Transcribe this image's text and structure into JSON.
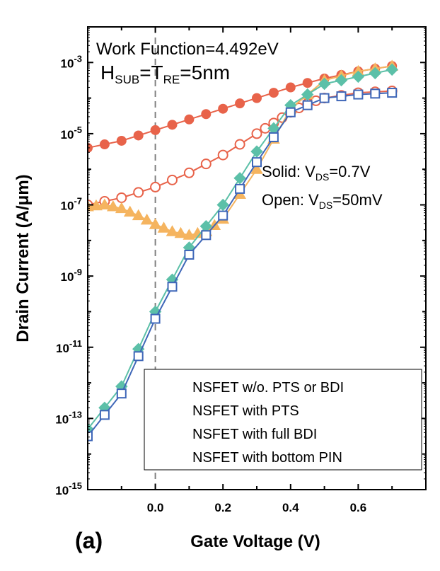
{
  "chart_data": {
    "type": "line",
    "panel_label": "(a)",
    "xlabel": "Gate Voltage (V)",
    "ylabel": "Drain Current (A/μm)",
    "xlim": [
      -0.2,
      0.8
    ],
    "ylim_exp": [
      -15,
      -2
    ],
    "y_scale": "log",
    "x_ticks": [
      "0.0",
      "0.2",
      "0.4",
      "0.6"
    ],
    "x_tick_values": [
      0.0,
      0.2,
      0.4,
      0.6
    ],
    "y_ticks": [
      {
        "base": "10",
        "exp": "-3",
        "value": -3
      },
      {
        "base": "10",
        "exp": "-5",
        "value": -5
      },
      {
        "base": "10",
        "exp": "-7",
        "value": -7
      },
      {
        "base": "10",
        "exp": "-9",
        "value": -9
      },
      {
        "base": "10",
        "exp": "-11",
        "value": -11
      },
      {
        "base": "10",
        "exp": "-13",
        "value": -13
      },
      {
        "base": "10",
        "exp": "-15",
        "value": -15
      }
    ],
    "vline_x": 0.0,
    "annotations": {
      "work_function": "Work Function=4.492eV",
      "h_main": "H",
      "h_sub": "SUB",
      "t_main": "=T",
      "t_sub": "RE",
      "h_tail": "=5nm",
      "solid_pre": "Solid: V",
      "solid_sub": "DS",
      "solid_post": "=0.7V",
      "open_pre": "Open: V",
      "open_sub": "DS",
      "open_post": "=50mV"
    },
    "legend": [
      "NSFET w/o. PTS or BDI",
      "NSFET with PTS",
      "NSFET with full BDI",
      "NSFET with bottom PIN"
    ],
    "colors": {
      "red": "#e8634a",
      "orange": "#f5b45f",
      "teal": "#5cc0a8",
      "blue": "#3f67b8",
      "axis": "#000000",
      "dash": "#808080"
    },
    "series": [
      {
        "marker": "circle-filled",
        "color": "#e8634a",
        "x": [
          -0.2,
          -0.1,
          0.0,
          0.1,
          0.2,
          0.3,
          0.4,
          0.5,
          0.6,
          0.7
        ],
        "y": [
          -5.4,
          -5.2,
          -4.9,
          -4.6,
          -4.3,
          -4.0,
          -3.7,
          -3.45,
          -3.25,
          -3.1
        ]
      },
      {
        "marker": "circle-open",
        "color": "#e8634a",
        "x": [
          -0.2,
          -0.1,
          0.0,
          0.1,
          0.2,
          0.3,
          0.35,
          0.4,
          0.45,
          0.5,
          0.6,
          0.7
        ],
        "y": [
          -7.0,
          -6.8,
          -6.5,
          -6.1,
          -5.6,
          -5.0,
          -4.7,
          -4.4,
          -4.15,
          -4.0,
          -3.85,
          -3.8
        ]
      },
      {
        "marker": "triangle-filled",
        "color": "#f5b45f",
        "x": [
          -0.2,
          -0.15,
          -0.1,
          -0.05,
          0.0,
          0.05,
          0.1,
          0.15,
          0.2,
          0.3,
          0.4,
          0.5,
          0.6,
          0.7
        ],
        "y": [
          -7.05,
          -7.0,
          -7.1,
          -7.3,
          -7.55,
          -7.75,
          -7.85,
          -7.75,
          -7.4,
          -6.0,
          -4.3,
          -3.5,
          -3.25,
          -3.1
        ]
      },
      {
        "marker": "diamond-filled",
        "color": "#5cc0a8",
        "x": [
          -0.2,
          -0.1,
          0.0,
          0.1,
          0.2,
          0.3,
          0.4,
          0.5,
          0.6,
          0.7
        ],
        "y": [
          -13.3,
          -12.1,
          -10.0,
          -8.2,
          -7.0,
          -5.5,
          -4.2,
          -3.6,
          -3.4,
          -3.2
        ]
      },
      {
        "marker": "square-open",
        "color": "#3f67b8",
        "x": [
          -0.2,
          -0.1,
          0.0,
          0.1,
          0.2,
          0.3,
          0.4,
          0.5,
          0.6,
          0.7
        ],
        "y": [
          -13.5,
          -12.3,
          -10.2,
          -8.4,
          -7.3,
          -5.8,
          -4.4,
          -4.0,
          -3.9,
          -3.85
        ]
      }
    ]
  }
}
